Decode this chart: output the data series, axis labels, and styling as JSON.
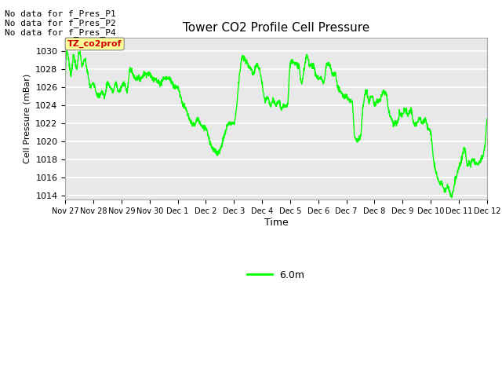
{
  "title": "Tower CO2 Profile Cell Pressure",
  "ylabel": "Cell Pressure (mBar)",
  "xlabel": "Time",
  "legend_label": "6.0m",
  "legend_color": "#00ff00",
  "line_color": "#00ff00",
  "bg_color": "#e8e8e8",
  "ylim": [
    1013.5,
    1031.5
  ],
  "yticks": [
    1014,
    1016,
    1018,
    1020,
    1022,
    1024,
    1026,
    1028,
    1030
  ],
  "xtick_labels": [
    "Nov 27",
    "Nov 28",
    "Nov 29",
    "Nov 30",
    "Dec 1",
    "Dec 2",
    "Dec 3",
    "Dec 4",
    "Dec 5",
    "Dec 6",
    "Dec 7",
    "Dec 8",
    "Dec 9",
    "Dec 10",
    "Dec 11",
    "Dec 12"
  ],
  "annotations": [
    "No data for f_Pres_P1",
    "No data for f_Pres_P2",
    "No data for f_Pres_P4"
  ],
  "tag_label": "TZ_co2prof",
  "tag_color": "#ffff99",
  "tag_text_color": "#cc0000"
}
